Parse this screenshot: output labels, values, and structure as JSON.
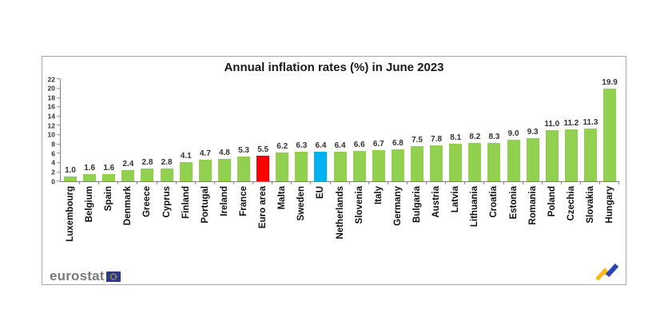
{
  "page": {
    "background": "#ffffff"
  },
  "chart": {
    "footer": {
      "brand": "eurostat",
      "icons": [
        "eu-flag-icon",
        "trend-arrow-icon"
      ]
    },
    "colors": {
      "box_border": "#a8a8a8",
      "axis": "#7f7f7f",
      "brand_text": "#7b7b7b",
      "eu_flag_blue": "#2b3a8f",
      "eu_flag_stars": "#ffcc00",
      "trend_yellow": "#fdb913",
      "trend_blue": "#2a44b8"
    }
  },
  "chart_data": {
    "type": "bar",
    "title": "Annual inflation rates (%) in June 2023",
    "xlabel": "",
    "ylabel": "",
    "ylim": [
      0,
      22
    ],
    "yticks": [
      0,
      2,
      4,
      6,
      8,
      10,
      12,
      14,
      16,
      18,
      20,
      22
    ],
    "grid": false,
    "legend": false,
    "categories": [
      "Luxembourg",
      "Belgium",
      "Spain",
      "Denmark",
      "Greece",
      "Cyprus",
      "Finland",
      "Portugal",
      "Ireland",
      "France",
      "Euro area",
      "Malta",
      "Sweden",
      "EU",
      "Netherlands",
      "Slovenia",
      "Italy",
      "Germany",
      "Bulgaria",
      "Austria",
      "Latvia",
      "Lithuania",
      "Croatia",
      "Estonia",
      "Romania",
      "Poland",
      "Czechia",
      "Slovakia",
      "Hungary"
    ],
    "values": [
      1.0,
      1.6,
      1.6,
      2.4,
      2.8,
      2.8,
      4.1,
      4.7,
      4.8,
      5.3,
      5.5,
      6.2,
      6.3,
      6.4,
      6.4,
      6.6,
      6.7,
      6.8,
      7.5,
      7.8,
      8.1,
      8.2,
      8.3,
      9.0,
      9.3,
      11.0,
      11.2,
      11.3,
      19.9
    ],
    "value_labels": [
      "1.0",
      "1.6",
      "1.6",
      "2.4",
      "2.8",
      "2.8",
      "4.1",
      "4.7",
      "4.8",
      "5.3",
      "5.5",
      "6.2",
      "6.3",
      "6.4",
      "6.4",
      "6.6",
      "6.7",
      "6.8",
      "7.5",
      "7.8",
      "8.1",
      "8.2",
      "8.3",
      "9.0",
      "9.3",
      "11.0",
      "11.2",
      "11.3",
      "19.9"
    ],
    "bar_colors": {
      "default": "#92D050",
      "Euro area": "#FF0000",
      "EU": "#00B0F0"
    }
  }
}
